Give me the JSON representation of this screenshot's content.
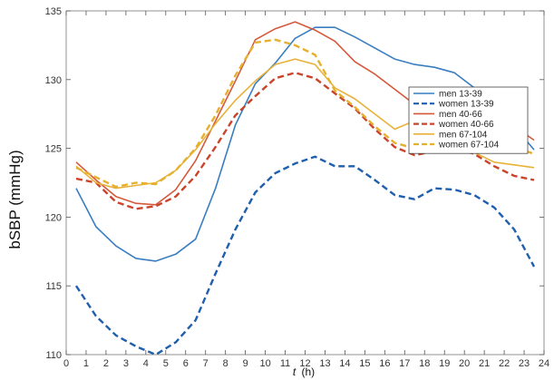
{
  "chart_data": {
    "type": "line",
    "xlabel_var": "t",
    "xlabel_unit": "(h)",
    "ylabel": "bSBP (mmHg)",
    "xlim": [
      0,
      24
    ],
    "ylim": [
      110,
      135
    ],
    "xticks": [
      0,
      1,
      2,
      3,
      4,
      5,
      6,
      7,
      8,
      9,
      10,
      11,
      12,
      13,
      14,
      15,
      16,
      17,
      18,
      19,
      20,
      21,
      22,
      23,
      24
    ],
    "yticks": [
      110,
      115,
      120,
      125,
      130,
      135
    ],
    "grid": false,
    "legend_position": "right",
    "x": [
      0.5,
      1.5,
      2.5,
      3.5,
      4.5,
      5.5,
      6.5,
      7.5,
      8.5,
      9.5,
      10.5,
      11.5,
      12.5,
      13.5,
      14.5,
      15.5,
      16.5,
      17.5,
      18.5,
      19.5,
      20.5,
      21.5,
      22.5,
      23.5
    ],
    "series": [
      {
        "name": "men 13-39",
        "color": "#3a7ec1",
        "dash": "solid",
        "values": [
          122.1,
          119.3,
          117.9,
          117.0,
          116.8,
          117.3,
          118.4,
          122.1,
          126.7,
          129.7,
          131.2,
          133.0,
          133.8,
          133.8,
          133.1,
          132.3,
          131.5,
          131.1,
          130.9,
          130.5,
          129.4,
          127.6,
          126.6,
          124.9
        ]
      },
      {
        "name": "women 13-39",
        "color": "#1f5fae",
        "dash": "dashed",
        "values": [
          115.0,
          112.8,
          111.4,
          110.6,
          110.0,
          110.9,
          112.5,
          115.9,
          119.1,
          121.8,
          123.2,
          123.9,
          124.4,
          123.7,
          123.7,
          122.7,
          121.6,
          121.3,
          122.1,
          122.0,
          121.6,
          120.7,
          119.1,
          116.4
        ]
      },
      {
        "name": "men 40-66",
        "color": "#d4593a",
        "dash": "solid",
        "values": [
          124.0,
          122.7,
          121.5,
          121.0,
          120.9,
          122.0,
          124.1,
          127.0,
          129.9,
          132.9,
          133.7,
          134.2,
          133.6,
          132.8,
          131.3,
          130.4,
          129.3,
          128.2,
          127.3,
          126.6,
          126.5,
          126.6,
          126.6,
          125.6
        ]
      },
      {
        "name": "women 40-66",
        "color": "#c9442a",
        "dash": "dashed",
        "values": [
          122.8,
          122.5,
          121.1,
          120.6,
          120.8,
          121.5,
          123.0,
          125.1,
          127.4,
          128.8,
          130.1,
          130.5,
          130.1,
          129.0,
          127.9,
          126.4,
          125.1,
          124.5,
          124.8,
          125.0,
          124.6,
          123.7,
          123.0,
          122.7
        ]
      },
      {
        "name": "men 67-104",
        "color": "#e8b23a",
        "dash": "solid",
        "values": [
          123.7,
          122.5,
          122.1,
          122.3,
          122.5,
          123.4,
          124.9,
          126.8,
          128.5,
          129.9,
          131.1,
          131.5,
          131.1,
          129.4,
          128.6,
          127.5,
          126.4,
          127.0,
          126.1,
          125.1,
          124.7,
          124.0,
          123.8,
          123.6
        ]
      },
      {
        "name": "women 67-104",
        "color": "#e6b02f",
        "dash": "dashed",
        "values": [
          123.6,
          122.9,
          122.2,
          122.5,
          122.4,
          123.4,
          125.0,
          127.4,
          130.3,
          132.7,
          132.9,
          132.5,
          131.8,
          129.2,
          128.0,
          126.6,
          125.4,
          125.0,
          125.6,
          125.3,
          125.4,
          125.1,
          125.1,
          124.6
        ]
      }
    ]
  }
}
